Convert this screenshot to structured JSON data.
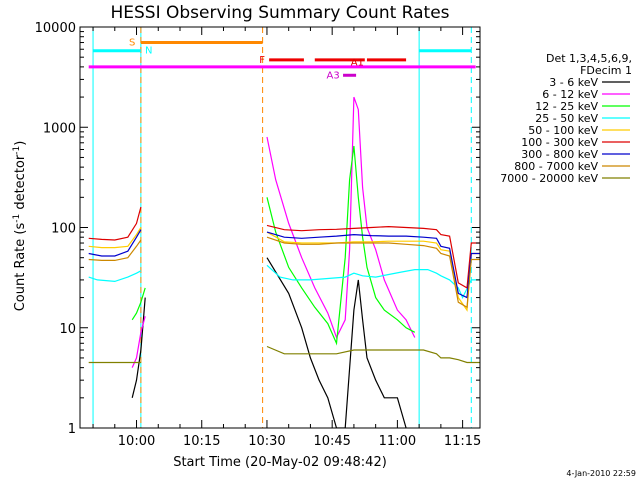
{
  "chart_data": {
    "type": "line",
    "title": "HESSI Observing Summary Count Rates",
    "xlabel": "Start Time (20-May-02 09:48:42)",
    "ylabel_main": "Count Rate (s",
    "ylabel_sup1": "-1",
    "ylabel_mid": " detector",
    "ylabel_sup2": "-1",
    "ylabel_end": ")",
    "y_scale": "log",
    "ylim": [
      1,
      10000
    ],
    "xlim_minutes": [
      -9,
      75
    ],
    "x_ticks": [
      {
        "label": "10:00",
        "minute": 0
      },
      {
        "label": "10:15",
        "minute": 15
      },
      {
        "label": "10:30",
        "minute": 30
      },
      {
        "label": "10:45",
        "minute": 45
      },
      {
        "label": "11:00",
        "minute": 60
      },
      {
        "label": "11:15",
        "minute": 75
      }
    ],
    "y_ticks": [
      {
        "label": "1",
        "value": 1
      },
      {
        "label": "10",
        "value": 10
      },
      {
        "label": "100",
        "value": 100
      },
      {
        "label": "1000",
        "value": 1000
      },
      {
        "label": "10000",
        "value": 10000
      }
    ],
    "legend_header": [
      "Det 1,3,4,5,6,9,",
      "FDecim 1"
    ],
    "series": [
      {
        "name": "3 - 6 keV",
        "color": "#000000",
        "points": [
          [
            -1,
            2
          ],
          [
            0,
            3
          ],
          [
            1,
            6
          ],
          [
            2,
            20
          ],
          [
            29,
            null
          ],
          [
            30,
            50
          ],
          [
            35,
            22
          ],
          [
            38,
            10
          ],
          [
            40,
            5
          ],
          [
            42,
            3
          ],
          [
            44,
            2
          ],
          [
            46,
            1
          ],
          [
            48,
            1
          ],
          [
            50,
            15
          ],
          [
            51,
            30
          ],
          [
            52,
            12
          ],
          [
            53,
            5
          ],
          [
            55,
            3
          ],
          [
            57,
            2
          ],
          [
            60,
            2
          ],
          [
            62,
            1
          ]
        ]
      },
      {
        "name": "6 - 12 keV",
        "color": "#ff00ff",
        "points": [
          [
            -1,
            4
          ],
          [
            0,
            5
          ],
          [
            1,
            9
          ],
          [
            2,
            13
          ],
          [
            29,
            null
          ],
          [
            30,
            800
          ],
          [
            32,
            300
          ],
          [
            35,
            110
          ],
          [
            38,
            50
          ],
          [
            41,
            25
          ],
          [
            44,
            14
          ],
          [
            46,
            8
          ],
          [
            48,
            12
          ],
          [
            49,
            60
          ],
          [
            50,
            2000
          ],
          [
            51,
            1500
          ],
          [
            52,
            250
          ],
          [
            53,
            100
          ],
          [
            55,
            60
          ],
          [
            57,
            30
          ],
          [
            60,
            15
          ],
          [
            62,
            12
          ],
          [
            64,
            8
          ]
        ]
      },
      {
        "name": "12 - 25 keV",
        "color": "#00ff00",
        "points": [
          [
            -1,
            12
          ],
          [
            0,
            14
          ],
          [
            1,
            18
          ],
          [
            2,
            25
          ],
          [
            29,
            null
          ],
          [
            30,
            200
          ],
          [
            32,
            90
          ],
          [
            35,
            40
          ],
          [
            38,
            25
          ],
          [
            41,
            16
          ],
          [
            44,
            11
          ],
          [
            46,
            7
          ],
          [
            48,
            50
          ],
          [
            49,
            300
          ],
          [
            50,
            650
          ],
          [
            51,
            200
          ],
          [
            52,
            80
          ],
          [
            53,
            40
          ],
          [
            55,
            20
          ],
          [
            57,
            15
          ],
          [
            60,
            12
          ],
          [
            62,
            10
          ],
          [
            64,
            9
          ]
        ]
      },
      {
        "name": "25 - 50 keV",
        "color": "#00ffff",
        "points": [
          [
            -11,
            32
          ],
          [
            -9,
            30
          ],
          [
            -5,
            29
          ],
          [
            -2,
            32
          ],
          [
            0,
            35
          ],
          [
            1,
            37
          ],
          [
            29,
            null
          ],
          [
            30,
            42
          ],
          [
            33,
            32
          ],
          [
            36,
            30
          ],
          [
            40,
            30
          ],
          [
            44,
            31
          ],
          [
            48,
            32
          ],
          [
            50,
            35
          ],
          [
            52,
            33
          ],
          [
            55,
            32
          ],
          [
            58,
            34
          ],
          [
            61,
            36
          ],
          [
            64,
            38
          ],
          [
            67,
            38
          ],
          [
            69,
            35
          ],
          [
            70,
            33
          ],
          [
            72,
            30
          ],
          [
            74,
            25
          ],
          [
            75,
            20
          ],
          [
            77,
            30
          ],
          [
            79,
            30
          ]
        ]
      },
      {
        "name": "50 - 100 keV",
        "color": "#ffcc00",
        "points": [
          [
            -11,
            65
          ],
          [
            -8,
            63
          ],
          [
            -5,
            63
          ],
          [
            -2,
            65
          ],
          [
            0,
            85
          ],
          [
            1,
            100
          ],
          [
            29,
            null
          ],
          [
            30,
            90
          ],
          [
            34,
            72
          ],
          [
            38,
            70
          ],
          [
            42,
            70
          ],
          [
            46,
            70
          ],
          [
            50,
            72
          ],
          [
            54,
            72
          ],
          [
            58,
            73
          ],
          [
            62,
            73
          ],
          [
            66,
            73
          ],
          [
            69,
            70
          ],
          [
            70,
            60
          ],
          [
            72,
            58
          ],
          [
            74,
            20
          ],
          [
            76,
            15
          ],
          [
            77,
            55
          ],
          [
            79,
            55
          ]
        ]
      },
      {
        "name": "100 - 300 keV",
        "color": "#dd0000",
        "points": [
          [
            -11,
            78
          ],
          [
            -8,
            76
          ],
          [
            -5,
            75
          ],
          [
            -2,
            80
          ],
          [
            0,
            110
          ],
          [
            1,
            160
          ],
          [
            29,
            null
          ],
          [
            30,
            105
          ],
          [
            34,
            95
          ],
          [
            38,
            93
          ],
          [
            42,
            95
          ],
          [
            46,
            96
          ],
          [
            50,
            98
          ],
          [
            54,
            100
          ],
          [
            58,
            102
          ],
          [
            62,
            100
          ],
          [
            66,
            98
          ],
          [
            69,
            95
          ],
          [
            70,
            85
          ],
          [
            72,
            82
          ],
          [
            74,
            28
          ],
          [
            76,
            25
          ],
          [
            77,
            70
          ],
          [
            79,
            70
          ]
        ]
      },
      {
        "name": "300 - 800 keV",
        "color": "#0000cc",
        "points": [
          [
            -11,
            55
          ],
          [
            -8,
            52
          ],
          [
            -5,
            52
          ],
          [
            -2,
            58
          ],
          [
            0,
            80
          ],
          [
            1,
            95
          ],
          [
            29,
            null
          ],
          [
            30,
            90
          ],
          [
            34,
            80
          ],
          [
            38,
            78
          ],
          [
            42,
            80
          ],
          [
            46,
            82
          ],
          [
            50,
            85
          ],
          [
            54,
            83
          ],
          [
            58,
            82
          ],
          [
            62,
            82
          ],
          [
            66,
            80
          ],
          [
            69,
            78
          ],
          [
            70,
            65
          ],
          [
            72,
            62
          ],
          [
            74,
            22
          ],
          [
            76,
            20
          ],
          [
            77,
            55
          ],
          [
            79,
            55
          ]
        ]
      },
      {
        "name": "800 - 7000 keV",
        "color": "#cc8800",
        "points": [
          [
            -11,
            48
          ],
          [
            -8,
            47
          ],
          [
            -5,
            47
          ],
          [
            -2,
            50
          ],
          [
            0,
            65
          ],
          [
            1,
            75
          ],
          [
            29,
            null
          ],
          [
            30,
            80
          ],
          [
            34,
            70
          ],
          [
            38,
            68
          ],
          [
            42,
            68
          ],
          [
            46,
            70
          ],
          [
            50,
            70
          ],
          [
            54,
            70
          ],
          [
            58,
            70
          ],
          [
            62,
            68
          ],
          [
            66,
            66
          ],
          [
            69,
            62
          ],
          [
            70,
            55
          ],
          [
            72,
            52
          ],
          [
            74,
            18
          ],
          [
            76,
            16
          ],
          [
            77,
            48
          ],
          [
            79,
            48
          ]
        ]
      },
      {
        "name": "7000 - 20000 keV",
        "color": "#808000",
        "points": [
          [
            -11,
            4.5
          ],
          [
            -8,
            4.5
          ],
          [
            -5,
            4.5
          ],
          [
            -2,
            4.5
          ],
          [
            0,
            4.5
          ],
          [
            1,
            4.5
          ],
          [
            29,
            null
          ],
          [
            30,
            6.5
          ],
          [
            34,
            5.5
          ],
          [
            38,
            5.5
          ],
          [
            42,
            5.5
          ],
          [
            46,
            5.5
          ],
          [
            50,
            6
          ],
          [
            54,
            6
          ],
          [
            58,
            6
          ],
          [
            62,
            6
          ],
          [
            66,
            6
          ],
          [
            69,
            5.5
          ],
          [
            70,
            5
          ],
          [
            72,
            5
          ],
          [
            74,
            4.8
          ],
          [
            76,
            4.5
          ],
          [
            77,
            4.5
          ],
          [
            79,
            4.5
          ]
        ]
      }
    ],
    "vlines": [
      {
        "minute": -10,
        "color": "#00ffff",
        "style": "solid"
      },
      {
        "minute": 1,
        "color": "#00ffff",
        "style": "solid"
      },
      {
        "minute": 1,
        "color": "#ff8800",
        "style": "dashed"
      },
      {
        "minute": 29,
        "color": "#ff8800",
        "style": "dashed"
      },
      {
        "minute": 65,
        "color": "#00ffff",
        "style": "solid"
      },
      {
        "minute": 77,
        "color": "#00ffff",
        "style": "dashed"
      }
    ],
    "flags": [
      {
        "label": "N",
        "color": "#00ffff",
        "y": 5800,
        "segments": [
          [
            -10,
            1
          ],
          [
            65,
            77
          ]
        ],
        "label_minute": 1.5,
        "label_side": "right"
      },
      {
        "label": "S",
        "color": "#ff8800",
        "y": 7000,
        "segments": [
          [
            1,
            29
          ]
        ],
        "label_minute": 0.2,
        "label_side": "left"
      },
      {
        "label": "F",
        "color": "#ee0000",
        "y": 4700,
        "segments": [
          [
            30.5,
            38.5
          ],
          [
            41,
            52.5
          ],
          [
            53,
            62
          ]
        ],
        "label_minute": 30,
        "label_side": "left"
      },
      {
        "label": "A1",
        "color": "#dd0000",
        "y": 4400,
        "segments": [],
        "label_minute": 48.8,
        "label_side": "right"
      },
      {
        "label": "A3",
        "color": "#cc00cc",
        "y": 3300,
        "segments": [
          [
            47.5,
            50.5
          ]
        ],
        "label_minute": 47.2,
        "label_side": "left"
      },
      {
        "label": "",
        "color": "#ff00ff",
        "y": 4000,
        "segments": [
          [
            -11,
            78
          ]
        ],
        "label_minute": 0,
        "label_side": "right"
      }
    ]
  },
  "footer": "4-Jan-2010 22:59"
}
